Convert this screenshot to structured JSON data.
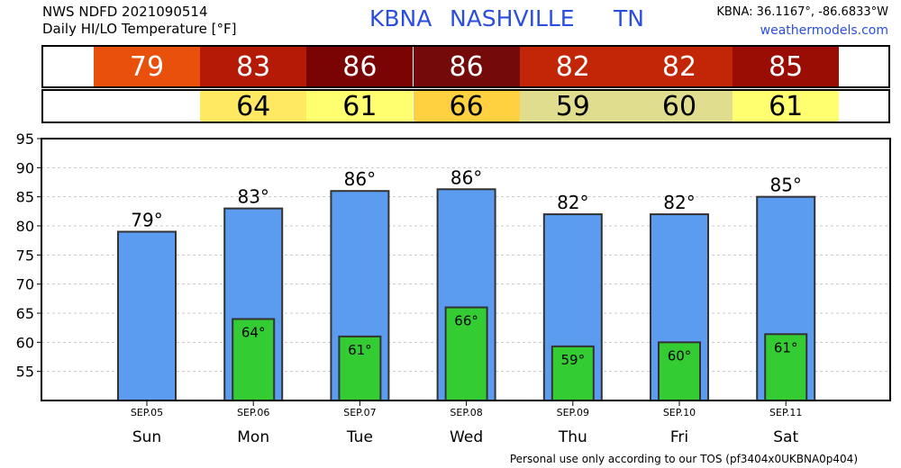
{
  "header": {
    "line1": "NWS NDFD 2021090514",
    "line2": "Daily HI/LO Temperature [°F]",
    "station": "KBNA",
    "city": "NASHVILLE",
    "state": "TN",
    "coords": "KBNA: 36.1167°, -86.6833°W",
    "site": "weathermodels.com"
  },
  "footer": "Personal use only according to our TOS (pf3404x0UKBNA0p404)",
  "degree_symbol": "°",
  "colors": {
    "hi_bar": "#5b9cf0",
    "lo_bar": "#33cc33",
    "hi_strip": [
      "#e8500c",
      "#b51a06",
      "#7a0404",
      "#740a0a",
      "#c32606",
      "#c32606",
      "#9a0d04"
    ],
    "lo_strip": [
      "#ffe862",
      "#ffff70",
      "#ffd040",
      "#e0dd8e",
      "#e0dd8e",
      "#ffff70"
    ]
  },
  "chart_data": {
    "type": "bar",
    "categories": [
      "Sun",
      "Mon",
      "Tue",
      "Wed",
      "Thu",
      "Fri",
      "Sat"
    ],
    "dates": [
      "SEP.05",
      "SEP.06",
      "SEP.07",
      "SEP.08",
      "SEP.09",
      "SEP.10",
      "SEP.11"
    ],
    "hi_labels": [
      "79",
      "83",
      "86",
      "86",
      "82",
      "82",
      "85"
    ],
    "lo_labels": [
      null,
      "64",
      "61",
      "66",
      "59",
      "60",
      "61"
    ],
    "series": [
      {
        "values": [
          79,
          83,
          86,
          86.3,
          82,
          82,
          85
        ]
      },
      {
        "values": [
          null,
          64,
          61,
          66,
          59.3,
          60,
          61.4
        ]
      }
    ],
    "ylim": [
      50,
      95
    ],
    "yticks": [
      55,
      60,
      65,
      70,
      75,
      80,
      85,
      90,
      95
    ],
    "grid": true
  }
}
